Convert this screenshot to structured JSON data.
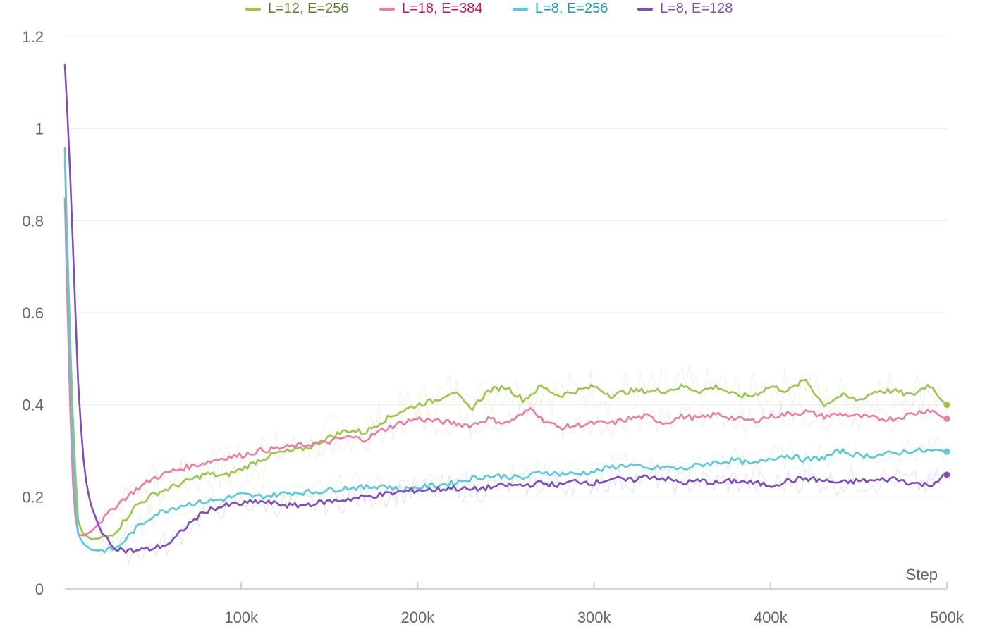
{
  "chart_data": {
    "type": "line",
    "xlabel": "Step",
    "ylabel": "",
    "xlim": [
      0,
      500000
    ],
    "ylim": [
      0,
      1.2
    ],
    "x_ticks": [
      {
        "value": 100000,
        "label": "100k"
      },
      {
        "value": 200000,
        "label": "200k"
      },
      {
        "value": 300000,
        "label": "300k"
      },
      {
        "value": 400000,
        "label": "400k"
      },
      {
        "value": 500000,
        "label": "500k"
      }
    ],
    "y_ticks": [
      {
        "value": 0,
        "label": "0"
      },
      {
        "value": 0.2,
        "label": "0.2"
      },
      {
        "value": 0.4,
        "label": "0.4"
      },
      {
        "value": 0.6,
        "label": "0.6"
      },
      {
        "value": 0.8,
        "label": "0.8"
      },
      {
        "value": 1,
        "label": "1"
      },
      {
        "value": 1.2,
        "label": "1.2"
      }
    ],
    "grid": true,
    "legend_position": "top-center",
    "series": [
      {
        "name": "L=12, E=256",
        "color": "#9bc54f",
        "legend_text_color": "#5f7f2a",
        "x": [
          0,
          2500,
          5000,
          7500,
          10000,
          15000,
          20000,
          25000,
          30000,
          35000,
          40000,
          50000,
          60000,
          70000,
          80000,
          90000,
          100000,
          110000,
          120000,
          130000,
          140000,
          150000,
          160000,
          170000,
          180000,
          190000,
          200000,
          210000,
          220000,
          230000,
          240000,
          250000,
          260000,
          270000,
          280000,
          290000,
          300000,
          310000,
          320000,
          330000,
          340000,
          350000,
          360000,
          370000,
          380000,
          390000,
          400000,
          410000,
          420000,
          430000,
          440000,
          450000,
          460000,
          470000,
          480000,
          490000,
          500000
        ],
        "y": [
          0.93,
          0.6,
          0.32,
          0.15,
          0.12,
          0.108,
          0.11,
          0.115,
          0.13,
          0.155,
          0.18,
          0.205,
          0.22,
          0.235,
          0.25,
          0.245,
          0.26,
          0.28,
          0.295,
          0.3,
          0.31,
          0.33,
          0.345,
          0.34,
          0.365,
          0.385,
          0.4,
          0.41,
          0.43,
          0.39,
          0.43,
          0.44,
          0.41,
          0.44,
          0.42,
          0.43,
          0.44,
          0.42,
          0.43,
          0.43,
          0.43,
          0.44,
          0.43,
          0.44,
          0.42,
          0.42,
          0.44,
          0.43,
          0.455,
          0.4,
          0.42,
          0.41,
          0.43,
          0.43,
          0.42,
          0.445,
          0.4
        ]
      },
      {
        "name": "L=18, E=384",
        "color": "#e77ea5",
        "legend_text_color": "#c2185b",
        "x": [
          0,
          2500,
          5000,
          7500,
          10000,
          15000,
          20000,
          25000,
          30000,
          40000,
          50000,
          60000,
          70000,
          80000,
          90000,
          100000,
          110000,
          120000,
          130000,
          140000,
          150000,
          160000,
          170000,
          180000,
          190000,
          200000,
          210000,
          220000,
          230000,
          240000,
          250000,
          260000,
          265000,
          270000,
          280000,
          290000,
          300000,
          310000,
          320000,
          330000,
          340000,
          350000,
          360000,
          370000,
          380000,
          390000,
          400000,
          410000,
          420000,
          430000,
          440000,
          450000,
          460000,
          470000,
          480000,
          490000,
          500000
        ],
        "y": [
          0.85,
          0.45,
          0.18,
          0.12,
          0.115,
          0.125,
          0.145,
          0.165,
          0.185,
          0.215,
          0.24,
          0.255,
          0.265,
          0.275,
          0.285,
          0.29,
          0.3,
          0.305,
          0.31,
          0.315,
          0.32,
          0.33,
          0.325,
          0.345,
          0.36,
          0.37,
          0.365,
          0.36,
          0.355,
          0.37,
          0.36,
          0.38,
          0.395,
          0.37,
          0.35,
          0.355,
          0.36,
          0.36,
          0.37,
          0.375,
          0.36,
          0.375,
          0.37,
          0.38,
          0.37,
          0.365,
          0.375,
          0.38,
          0.385,
          0.375,
          0.38,
          0.375,
          0.37,
          0.37,
          0.38,
          0.39,
          0.37
        ]
      },
      {
        "name": "L=8, E=256",
        "color": "#5ec8d9",
        "legend_text_color": "#1a9bb5",
        "x": [
          0,
          2500,
          5000,
          7500,
          10000,
          15000,
          20000,
          25000,
          30000,
          35000,
          40000,
          50000,
          60000,
          70000,
          80000,
          90000,
          100000,
          110000,
          120000,
          130000,
          140000,
          150000,
          160000,
          170000,
          180000,
          190000,
          200000,
          210000,
          220000,
          230000,
          240000,
          250000,
          260000,
          270000,
          280000,
          290000,
          300000,
          310000,
          320000,
          330000,
          340000,
          350000,
          360000,
          370000,
          380000,
          390000,
          400000,
          410000,
          420000,
          430000,
          440000,
          450000,
          460000,
          470000,
          480000,
          490000,
          500000
        ],
        "y": [
          0.96,
          0.55,
          0.25,
          0.12,
          0.1,
          0.085,
          0.083,
          0.085,
          0.09,
          0.11,
          0.13,
          0.16,
          0.175,
          0.185,
          0.19,
          0.195,
          0.205,
          0.2,
          0.205,
          0.21,
          0.21,
          0.215,
          0.22,
          0.22,
          0.225,
          0.215,
          0.22,
          0.225,
          0.23,
          0.24,
          0.245,
          0.245,
          0.24,
          0.255,
          0.25,
          0.25,
          0.255,
          0.265,
          0.27,
          0.26,
          0.265,
          0.26,
          0.27,
          0.275,
          0.28,
          0.27,
          0.285,
          0.29,
          0.28,
          0.285,
          0.3,
          0.29,
          0.29,
          0.295,
          0.3,
          0.3,
          0.298
        ]
      },
      {
        "name": "L=8, E=128",
        "color": "#7b4fb5",
        "legend_text_color": "#7b4fb5",
        "x": [
          0,
          2500,
          5000,
          7500,
          10000,
          12500,
          15000,
          20000,
          25000,
          30000,
          35000,
          40000,
          50000,
          60000,
          70000,
          80000,
          90000,
          100000,
          110000,
          120000,
          130000,
          140000,
          150000,
          160000,
          170000,
          180000,
          190000,
          200000,
          210000,
          220000,
          230000,
          240000,
          250000,
          260000,
          270000,
          280000,
          290000,
          300000,
          310000,
          320000,
          330000,
          340000,
          350000,
          360000,
          370000,
          380000,
          390000,
          400000,
          410000,
          420000,
          430000,
          440000,
          450000,
          460000,
          470000,
          480000,
          490000,
          500000
        ],
        "y": [
          1.14,
          0.95,
          0.7,
          0.45,
          0.3,
          0.22,
          0.18,
          0.13,
          0.1,
          0.088,
          0.083,
          0.083,
          0.088,
          0.1,
          0.14,
          0.17,
          0.18,
          0.185,
          0.19,
          0.185,
          0.18,
          0.185,
          0.19,
          0.195,
          0.2,
          0.205,
          0.21,
          0.215,
          0.215,
          0.22,
          0.215,
          0.22,
          0.225,
          0.225,
          0.23,
          0.225,
          0.235,
          0.23,
          0.24,
          0.235,
          0.245,
          0.24,
          0.23,
          0.235,
          0.23,
          0.235,
          0.23,
          0.225,
          0.235,
          0.24,
          0.235,
          0.23,
          0.235,
          0.235,
          0.24,
          0.23,
          0.225,
          0.248
        ]
      }
    ]
  }
}
